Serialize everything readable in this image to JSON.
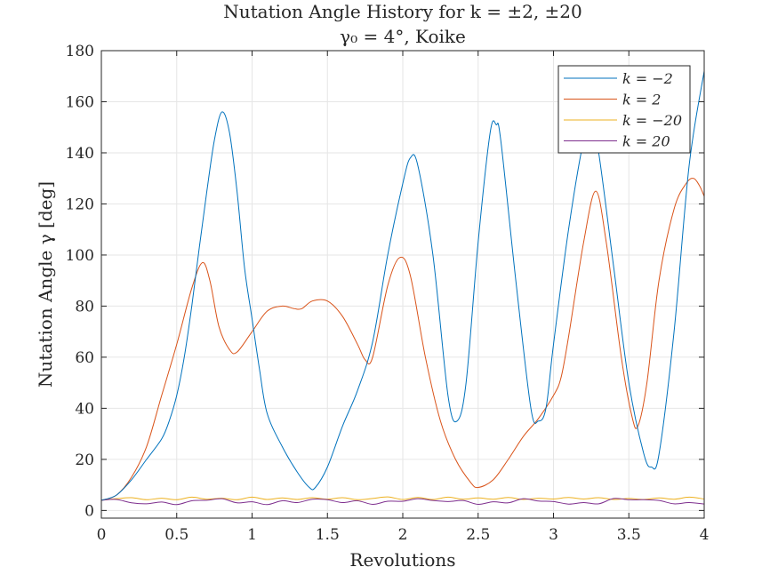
{
  "chart_data": {
    "type": "line",
    "title": "Nutation Angle History for k = ±2, ±20",
    "subtitle": "γ₀ = 4°, Koike",
    "xlabel": "Revolutions",
    "ylabel": "Nutation Angle γ [deg]",
    "xlim": [
      0,
      4
    ],
    "ylim": [
      -3,
      180
    ],
    "grid": true,
    "legend_position": "top-right",
    "x_ticks": [
      "0",
      "0.5",
      "1",
      "1.5",
      "2",
      "2.5",
      "3",
      "3.5",
      "4"
    ],
    "y_ticks": [
      "0",
      "20",
      "40",
      "60",
      "80",
      "100",
      "120",
      "140",
      "160",
      "180"
    ],
    "series": [
      {
        "name": "k = −2",
        "color": "#0072BD",
        "points": [
          [
            0,
            4
          ],
          [
            0.1,
            6
          ],
          [
            0.2,
            12
          ],
          [
            0.3,
            20
          ],
          [
            0.4,
            28
          ],
          [
            0.45,
            35
          ],
          [
            0.5,
            45
          ],
          [
            0.55,
            60
          ],
          [
            0.6,
            80
          ],
          [
            0.65,
            103
          ],
          [
            0.7,
            125
          ],
          [
            0.75,
            145
          ],
          [
            0.8,
            156
          ],
          [
            0.85,
            148
          ],
          [
            0.9,
            125
          ],
          [
            0.95,
            95
          ],
          [
            1.0,
            75
          ],
          [
            1.05,
            55
          ],
          [
            1.1,
            38
          ],
          [
            1.2,
            25
          ],
          [
            1.3,
            15
          ],
          [
            1.38,
            9
          ],
          [
            1.42,
            9
          ],
          [
            1.5,
            17
          ],
          [
            1.6,
            33
          ],
          [
            1.7,
            47
          ],
          [
            1.8,
            66
          ],
          [
            1.9,
            100
          ],
          [
            2.0,
            128
          ],
          [
            2.05,
            138
          ],
          [
            2.1,
            135
          ],
          [
            2.2,
            100
          ],
          [
            2.3,
            45
          ],
          [
            2.36,
            35
          ],
          [
            2.42,
            50
          ],
          [
            2.5,
            105
          ],
          [
            2.58,
            148
          ],
          [
            2.62,
            151
          ],
          [
            2.65,
            145
          ],
          [
            2.75,
            90
          ],
          [
            2.85,
            40
          ],
          [
            2.9,
            35
          ],
          [
            2.95,
            40
          ],
          [
            3.0,
            65
          ],
          [
            3.1,
            110
          ],
          [
            3.2,
            145
          ],
          [
            3.25,
            152
          ],
          [
            3.3,
            140
          ],
          [
            3.4,
            95
          ],
          [
            3.5,
            50
          ],
          [
            3.6,
            22
          ],
          [
            3.65,
            17
          ],
          [
            3.7,
            22
          ],
          [
            3.8,
            70
          ],
          [
            3.9,
            135
          ],
          [
            4.0,
            172
          ]
        ]
      },
      {
        "name": "k = 2",
        "color": "#D95319",
        "points": [
          [
            0,
            4
          ],
          [
            0.1,
            6
          ],
          [
            0.2,
            13
          ],
          [
            0.3,
            25
          ],
          [
            0.4,
            45
          ],
          [
            0.5,
            65
          ],
          [
            0.6,
            87
          ],
          [
            0.67,
            97
          ],
          [
            0.72,
            90
          ],
          [
            0.78,
            72
          ],
          [
            0.85,
            63
          ],
          [
            0.9,
            62
          ],
          [
            1.0,
            70
          ],
          [
            1.1,
            78
          ],
          [
            1.2,
            80
          ],
          [
            1.28,
            79
          ],
          [
            1.33,
            79
          ],
          [
            1.4,
            82
          ],
          [
            1.5,
            82
          ],
          [
            1.6,
            76
          ],
          [
            1.7,
            65
          ],
          [
            1.75,
            59
          ],
          [
            1.8,
            60
          ],
          [
            1.9,
            88
          ],
          [
            1.98,
            99
          ],
          [
            2.05,
            92
          ],
          [
            2.15,
            60
          ],
          [
            2.25,
            35
          ],
          [
            2.35,
            20
          ],
          [
            2.45,
            11
          ],
          [
            2.5,
            9
          ],
          [
            2.6,
            12
          ],
          [
            2.7,
            20
          ],
          [
            2.8,
            29
          ],
          [
            2.9,
            36
          ],
          [
            3.0,
            45
          ],
          [
            3.05,
            52
          ],
          [
            3.1,
            68
          ],
          [
            3.2,
            105
          ],
          [
            3.28,
            125
          ],
          [
            3.35,
            105
          ],
          [
            3.45,
            60
          ],
          [
            3.52,
            37
          ],
          [
            3.56,
            33
          ],
          [
            3.62,
            50
          ],
          [
            3.7,
            90
          ],
          [
            3.8,
            118
          ],
          [
            3.88,
            128
          ],
          [
            3.93,
            130
          ],
          [
            3.97,
            127
          ],
          [
            4.0,
            123
          ]
        ]
      },
      {
        "name": "k = −20",
        "color": "#EDB120",
        "points": [
          [
            0,
            4
          ],
          [
            0.1,
            4.6
          ],
          [
            0.2,
            5
          ],
          [
            0.3,
            4.2
          ],
          [
            0.4,
            4.8
          ],
          [
            0.5,
            4.2
          ],
          [
            0.6,
            5.2
          ],
          [
            0.7,
            4.4
          ],
          [
            0.8,
            4.8
          ],
          [
            0.9,
            4.2
          ],
          [
            1.0,
            5.2
          ],
          [
            1.1,
            4.3
          ],
          [
            1.2,
            4.9
          ],
          [
            1.3,
            4.3
          ],
          [
            1.4,
            5
          ],
          [
            1.5,
            4.4
          ],
          [
            1.6,
            5
          ],
          [
            1.7,
            4.2
          ],
          [
            1.8,
            4.7
          ],
          [
            1.9,
            5.3
          ],
          [
            2.0,
            4.3
          ],
          [
            2.1,
            5.1
          ],
          [
            2.2,
            4.3
          ],
          [
            2.3,
            5.2
          ],
          [
            2.4,
            4.4
          ],
          [
            2.5,
            4.9
          ],
          [
            2.6,
            4.4
          ],
          [
            2.7,
            5.1
          ],
          [
            2.8,
            4.3
          ],
          [
            2.9,
            4.8
          ],
          [
            3.0,
            4.5
          ],
          [
            3.1,
            5.1
          ],
          [
            3.2,
            4.5
          ],
          [
            3.3,
            5
          ],
          [
            3.4,
            4.3
          ],
          [
            3.5,
            4.7
          ],
          [
            3.6,
            4.3
          ],
          [
            3.7,
            4.9
          ],
          [
            3.8,
            4.4
          ],
          [
            3.9,
            5.2
          ],
          [
            4.0,
            4.5
          ]
        ]
      },
      {
        "name": "k = 20",
        "color": "#7E2F8E",
        "points": [
          [
            0,
            4
          ],
          [
            0.1,
            4.3
          ],
          [
            0.2,
            3
          ],
          [
            0.3,
            2.6
          ],
          [
            0.4,
            3.3
          ],
          [
            0.5,
            2.3
          ],
          [
            0.6,
            3.8
          ],
          [
            0.7,
            4
          ],
          [
            0.8,
            4.6
          ],
          [
            0.9,
            3
          ],
          [
            1.0,
            3.4
          ],
          [
            1.1,
            2.3
          ],
          [
            1.2,
            3.8
          ],
          [
            1.3,
            3.1
          ],
          [
            1.4,
            4.4
          ],
          [
            1.5,
            4.2
          ],
          [
            1.6,
            3.1
          ],
          [
            1.7,
            3.8
          ],
          [
            1.8,
            2.4
          ],
          [
            1.9,
            3.6
          ],
          [
            2.0,
            3.6
          ],
          [
            2.1,
            4.6
          ],
          [
            2.2,
            3.9
          ],
          [
            2.3,
            3.5
          ],
          [
            2.4,
            3.9
          ],
          [
            2.5,
            2.4
          ],
          [
            2.6,
            3.4
          ],
          [
            2.7,
            3
          ],
          [
            2.8,
            4.6
          ],
          [
            2.9,
            3.7
          ],
          [
            3.0,
            3.5
          ],
          [
            3.1,
            2.5
          ],
          [
            3.2,
            3.1
          ],
          [
            3.3,
            2.6
          ],
          [
            3.4,
            4.7
          ],
          [
            3.5,
            4.2
          ],
          [
            3.6,
            4.2
          ],
          [
            3.7,
            3.9
          ],
          [
            3.8,
            2.6
          ],
          [
            3.9,
            3.1
          ],
          [
            4.0,
            2.5
          ]
        ]
      }
    ]
  }
}
